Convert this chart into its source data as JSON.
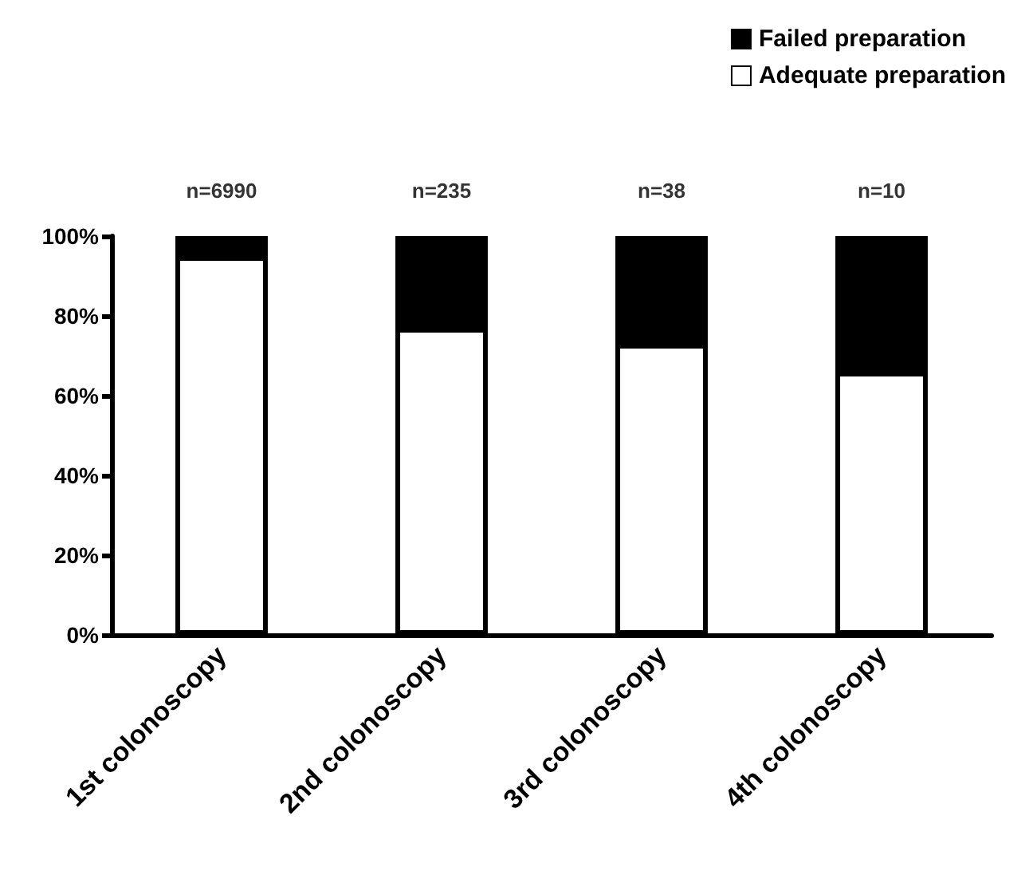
{
  "chart_data": {
    "type": "bar",
    "stacked": true,
    "categories": [
      "1st colonoscopy",
      "2nd colonoscopy",
      "3rd colonoscopy",
      "4th colonoscopy"
    ],
    "series": [
      {
        "name": "Adequate preparation",
        "color": "#ffffff",
        "values": [
          95,
          77,
          73,
          66
        ]
      },
      {
        "name": "Failed preparation",
        "color": "#000000",
        "values": [
          5,
          23,
          27,
          34
        ]
      }
    ],
    "ylim": [
      0,
      100
    ],
    "yticks": [
      {
        "value": 0,
        "label": "0%"
      },
      {
        "value": 20,
        "label": "20%"
      },
      {
        "value": 40,
        "label": "40%"
      },
      {
        "value": 60,
        "label": "60%"
      },
      {
        "value": 80,
        "label": "80%"
      },
      {
        "value": 100,
        "label": "100%"
      }
    ],
    "annotations": [
      {
        "text": "n=6990",
        "x": "1st colonoscopy",
        "y": 100
      },
      {
        "text": "n=235",
        "x": "2nd colonoscopy",
        "y": 100
      },
      {
        "text": "n=38",
        "x": "3rd colonoscopy",
        "y": 100
      },
      {
        "text": "n=10",
        "x": "4th colonoscopy",
        "y": 100
      }
    ],
    "legend": "top right",
    "grid": false
  }
}
